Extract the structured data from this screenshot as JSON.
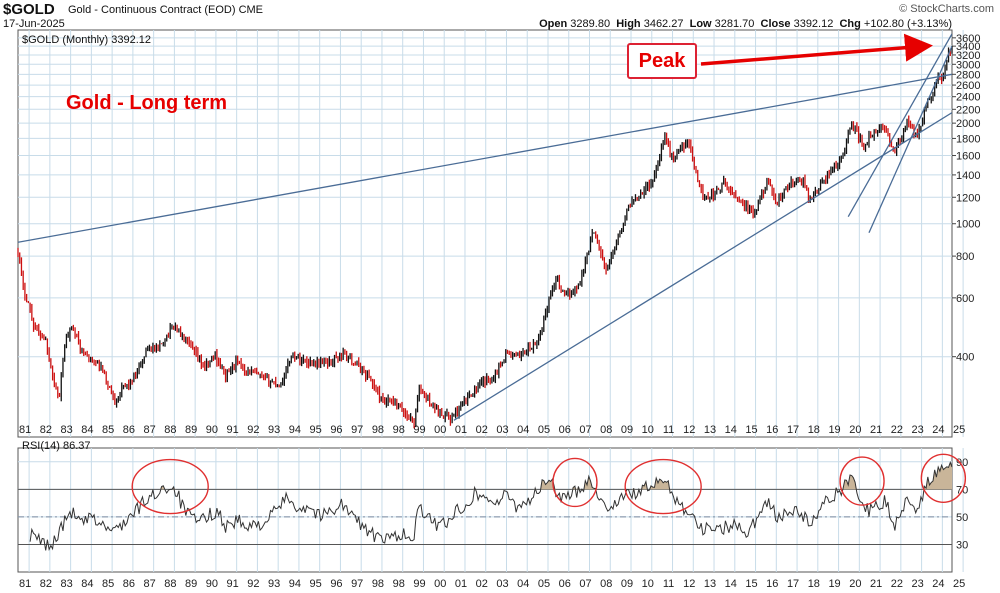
{
  "header": {
    "symbol": "$GOLD",
    "name": "Gold - Continuous Contract (EOD)",
    "exchange": "CME",
    "date": "17-Jun-2025",
    "credit": "© StockCharts.com",
    "open_label": "Open",
    "open": "3289.80",
    "high_label": "High",
    "high": "3462.27",
    "low_label": "Low",
    "low": "3281.70",
    "close_label": "Close",
    "close": "3392.12",
    "chg_label": "Chg",
    "chg": "+102.80 (+3.13%)"
  },
  "annotations": {
    "title": "Gold  -  Long term",
    "peak": "Peak"
  },
  "colors": {
    "up": "#111111",
    "down": "#cc1111",
    "grid": "#c8dce9",
    "trend": "#4a6c96",
    "annot": "#e60000"
  },
  "chart_data": [
    {
      "type": "candlestick",
      "legend": "$GOLD (Monthly) 3392.12",
      "y_scale": "log",
      "ylim": [
        230,
        3800
      ],
      "y_ticks": [
        400,
        600,
        800,
        1000,
        1200,
        1400,
        1600,
        1800,
        2000,
        2200,
        2400,
        2600,
        2800,
        3000,
        3200,
        3400,
        3600
      ],
      "x_tick_labels": [
        "81",
        "82",
        "83",
        "84",
        "85",
        "86",
        "87",
        "88",
        "89",
        "90",
        "91",
        "92",
        "93",
        "94",
        "95",
        "96",
        "97",
        "98",
        "98",
        "99",
        "00",
        "01",
        "02",
        "03",
        "04",
        "05",
        "06",
        "07",
        "08",
        "09",
        "10",
        "11",
        "12",
        "13",
        "14",
        "15",
        "16",
        "17",
        "18",
        "19",
        "20",
        "21",
        "22",
        "23",
        "24",
        "25"
      ],
      "xlim": [
        "1980-06",
        "2025-06"
      ],
      "path": [
        [
          "1980-06",
          840
        ],
        [
          "1980-09",
          640
        ],
        [
          "1980-12",
          580
        ],
        [
          "1981-03",
          500
        ],
        [
          "1981-06",
          470
        ],
        [
          "1981-10",
          450
        ],
        [
          "1982-03",
          330
        ],
        [
          "1982-06",
          300
        ],
        [
          "1982-09",
          440
        ],
        [
          "1983-02",
          500
        ],
        [
          "1983-06",
          420
        ],
        [
          "1983-12",
          390
        ],
        [
          "1984-06",
          370
        ],
        [
          "1985-02",
          295
        ],
        [
          "1985-06",
          320
        ],
        [
          "1986-02",
          345
        ],
        [
          "1986-09",
          430
        ],
        [
          "1987-03",
          420
        ],
        [
          "1987-12",
          500
        ],
        [
          "1988-06",
          450
        ],
        [
          "1988-12",
          410
        ],
        [
          "1989-06",
          370
        ],
        [
          "1989-12",
          405
        ],
        [
          "1990-06",
          350
        ],
        [
          "1990-12",
          385
        ],
        [
          "1991-06",
          365
        ],
        [
          "1992-06",
          340
        ],
        [
          "1993-02",
          330
        ],
        [
          "1993-08",
          405
        ],
        [
          "1994-06",
          385
        ],
        [
          "1995-06",
          385
        ],
        [
          "1996-02",
          410
        ],
        [
          "1996-12",
          370
        ],
        [
          "1997-06",
          340
        ],
        [
          "1998-01",
          290
        ],
        [
          "1998-06",
          295
        ],
        [
          "1999-07",
          255
        ],
        [
          "1999-10",
          320
        ],
        [
          "2000-06",
          285
        ],
        [
          "2001-04",
          260
        ],
        [
          "2002-06",
          320
        ],
        [
          "2003-06",
          355
        ],
        [
          "2003-12",
          410
        ],
        [
          "2004-06",
          400
        ],
        [
          "2005-06",
          435
        ],
        [
          "2006-05",
          700
        ],
        [
          "2006-10",
          600
        ],
        [
          "2007-06",
          650
        ],
        [
          "2008-03",
          960
        ],
        [
          "2008-10",
          720
        ],
        [
          "2009-06",
          950
        ],
        [
          "2009-12",
          1150
        ],
        [
          "2010-06",
          1240
        ],
        [
          "2011-01",
          1340
        ],
        [
          "2011-08",
          1850
        ],
        [
          "2011-12",
          1570
        ],
        [
          "2012-09",
          1780
        ],
        [
          "2013-06",
          1200
        ],
        [
          "2013-12",
          1220
        ],
        [
          "2014-06",
          1320
        ],
        [
          "2015-03",
          1180
        ],
        [
          "2015-12",
          1060
        ],
        [
          "2016-07",
          1350
        ],
        [
          "2016-12",
          1150
        ],
        [
          "2017-09",
          1320
        ],
        [
          "2018-04",
          1345
        ],
        [
          "2018-08",
          1180
        ],
        [
          "2019-06",
          1400
        ],
        [
          "2019-12",
          1515
        ],
        [
          "2020-03",
          1600
        ],
        [
          "2020-08",
          2000
        ],
        [
          "2021-03",
          1700
        ],
        [
          "2021-06",
          1800
        ],
        [
          "2022-03",
          1950
        ],
        [
          "2022-09",
          1620
        ],
        [
          "2023-04",
          2000
        ],
        [
          "2023-10",
          1820
        ],
        [
          "2024-03",
          2250
        ],
        [
          "2024-10",
          2750
        ],
        [
          "2024-12",
          2640
        ],
        [
          "2025-03",
          3150
        ],
        [
          "2025-06",
          3392
        ]
      ],
      "trendlines": [
        {
          "from": [
            "1980-06",
            880
          ],
          "to": [
            "2025-06",
            2800
          ]
        },
        {
          "from": [
            "2001-06",
            258
          ],
          "to": [
            "2025-06",
            2150
          ]
        },
        {
          "from": [
            "2020-06",
            1050
          ],
          "to": [
            "2025-06",
            3700
          ]
        },
        {
          "from": [
            "2021-06",
            940
          ],
          "to": [
            "2025-06",
            3400
          ]
        }
      ]
    },
    {
      "type": "line",
      "legend": "RSI(14) 86.37",
      "ylim": [
        10,
        100
      ],
      "y_ticks": [
        30,
        50,
        70,
        90
      ],
      "reference_lines": [
        30,
        50,
        70
      ],
      "x_tick_labels": [
        "81",
        "82",
        "83",
        "84",
        "85",
        "86",
        "87",
        "88",
        "89",
        "90",
        "91",
        "92",
        "93",
        "94",
        "95",
        "96",
        "97",
        "98",
        "98",
        "99",
        "00",
        "01",
        "02",
        "03",
        "04",
        "05",
        "06",
        "07",
        "08",
        "09",
        "10",
        "11",
        "12",
        "13",
        "14",
        "15",
        "16",
        "17",
        "18",
        "19",
        "20",
        "21",
        "22",
        "23",
        "24",
        "25"
      ],
      "xlim": [
        "1980-06",
        "2025-06"
      ],
      "series": [
        {
          "values": [
            [
              "1981-01",
              37
            ],
            [
              "1981-06",
              33
            ],
            [
              "1982-01",
              28
            ],
            [
              "1982-06",
              40
            ],
            [
              "1983-01",
              54
            ],
            [
              "1983-06",
              45
            ],
            [
              "1984-01",
              49
            ],
            [
              "1984-06",
              45
            ],
            [
              "1985-01",
              39
            ],
            [
              "1985-06",
              45
            ],
            [
              "1986-01",
              52
            ],
            [
              "1986-06",
              60
            ],
            [
              "1987-01",
              66
            ],
            [
              "1987-06",
              72
            ],
            [
              "1988-01",
              70
            ],
            [
              "1988-06",
              55
            ],
            [
              "1989-01",
              46
            ],
            [
              "1989-06",
              49
            ],
            [
              "1990-01",
              55
            ],
            [
              "1990-06",
              43
            ],
            [
              "1991-01",
              48
            ],
            [
              "1991-06",
              41
            ],
            [
              "1992-01",
              45
            ],
            [
              "1992-06",
              47
            ],
            [
              "1993-01",
              58
            ],
            [
              "1993-06",
              64
            ],
            [
              "1994-01",
              56
            ],
            [
              "1994-06",
              58
            ],
            [
              "1995-01",
              50
            ],
            [
              "1995-06",
              54
            ],
            [
              "1996-01",
              60
            ],
            [
              "1996-06",
              52
            ],
            [
              "1997-01",
              44
            ],
            [
              "1997-06",
              38
            ],
            [
              "1998-01",
              32
            ],
            [
              "1998-06",
              36
            ],
            [
              "1999-01",
              38
            ],
            [
              "1999-06",
              30
            ],
            [
              "1999-10",
              58
            ],
            [
              "2000-06",
              44
            ],
            [
              "2001-01",
              46
            ],
            [
              "2001-06",
              52
            ],
            [
              "2002-01",
              60
            ],
            [
              "2002-06",
              67
            ],
            [
              "2003-01",
              64
            ],
            [
              "2003-06",
              60
            ],
            [
              "2004-01",
              66
            ],
            [
              "2004-06",
              58
            ],
            [
              "2005-01",
              62
            ],
            [
              "2005-06",
              68
            ],
            [
              "2006-01",
              78
            ],
            [
              "2006-06",
              66
            ],
            [
              "2007-01",
              64
            ],
            [
              "2007-06",
              70
            ],
            [
              "2008-01",
              78
            ],
            [
              "2008-10",
              55
            ],
            [
              "2009-06",
              64
            ],
            [
              "2010-01",
              66
            ],
            [
              "2010-06",
              70
            ],
            [
              "2011-01",
              72
            ],
            [
              "2011-08",
              78
            ],
            [
              "2012-01",
              66
            ],
            [
              "2012-06",
              58
            ],
            [
              "2013-01",
              50
            ],
            [
              "2013-06",
              40
            ],
            [
              "2014-01",
              44
            ],
            [
              "2014-06",
              42
            ],
            [
              "2015-01",
              45
            ],
            [
              "2015-06",
              38
            ],
            [
              "2016-01",
              48
            ],
            [
              "2016-07",
              62
            ],
            [
              "2017-01",
              49
            ],
            [
              "2017-06",
              52
            ],
            [
              "2018-01",
              55
            ],
            [
              "2018-08",
              44
            ],
            [
              "2019-06",
              62
            ],
            [
              "2020-01",
              68
            ],
            [
              "2020-08",
              82
            ],
            [
              "2021-03",
              56
            ],
            [
              "2021-08",
              54
            ],
            [
              "2022-03",
              62
            ],
            [
              "2022-09",
              44
            ],
            [
              "2023-04",
              64
            ],
            [
              "2023-10",
              56
            ],
            [
              "2024-03",
              74
            ],
            [
              "2024-10",
              82
            ],
            [
              "2025-06",
              86
            ]
          ]
        }
      ]
    }
  ]
}
